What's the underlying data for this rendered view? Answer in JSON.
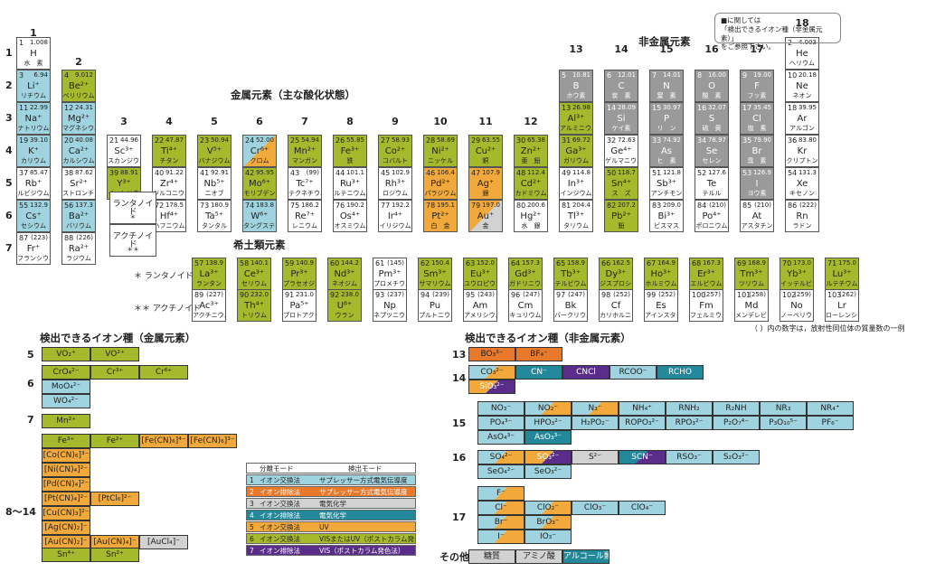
{
  "colors": {
    "green": "#a5b92c",
    "blue": "#9fd3e0",
    "orange": "#f1a93c",
    "gray": "#9a9a9a",
    "dkorange": "#e8792a",
    "teal": "#23899a",
    "purple": "#5a2d8a",
    "lightgray": "#d2d2d2"
  },
  "titles": {
    "metal": "金属元素（主な酸化状態）",
    "nonmetal": "非金属元素",
    "rare": "希土類元素",
    "ion_metal": "検出できるイオン種（金属元素）",
    "ion_nonmetal": "検出できるイオン種（非金属元素）",
    "note_line1": "■に関しては",
    "note_line2": "「検出できるイオン種（非金属元素）」",
    "note_line3": "をご参照下さい。",
    "footnote": "（ ）内の数字は，放射性同位体の質量数の一例",
    "lanth_row": "＊ ランタノイド",
    "actin_row": "＊＊ アクチノイド",
    "lanth_cell": "ランタノイド",
    "lanth_mark": "＊",
    "actin_cell": "アクチノイド",
    "actin_mark": "＊＊"
  },
  "group_numbers": [
    "1",
    "2",
    "3",
    "4",
    "5",
    "6",
    "7",
    "8",
    "9",
    "10",
    "11",
    "12",
    "13",
    "14",
    "15",
    "16",
    "17",
    "18"
  ],
  "period_numbers": [
    "1",
    "2",
    "3",
    "4",
    "5",
    "6",
    "7"
  ],
  "ion_groups": {
    "m5": "5",
    "m6": "6",
    "m7": "7",
    "m8": "8〜14",
    "n13": "13",
    "n14": "14",
    "n15": "15",
    "n16": "16",
    "n17": "17",
    "other": "その他"
  },
  "elements": [
    {
      "n": "1",
      "w": "1.008",
      "s": "H",
      "j": "水　素",
      "g": 1,
      "p": 1,
      "c": "white"
    },
    {
      "n": "2",
      "w": "4.003",
      "s": "He",
      "j": "ヘリウム",
      "g": 18,
      "p": 1,
      "c": "white"
    },
    {
      "n": "3",
      "w": "6.94",
      "s": "Li⁺",
      "j": "リチウム",
      "g": 1,
      "p": 2,
      "c": "blue"
    },
    {
      "n": "4",
      "w": "9.012",
      "s": "Be²⁺",
      "j": "ベリリウム",
      "g": 2,
      "p": 2,
      "c": "green"
    },
    {
      "n": "5",
      "w": "10.81",
      "s": "B",
      "j": "ホウ素",
      "g": 13,
      "p": 2,
      "c": "gray"
    },
    {
      "n": "6",
      "w": "12.01",
      "s": "C",
      "j": "炭　素",
      "g": 14,
      "p": 2,
      "c": "gray"
    },
    {
      "n": "7",
      "w": "14.01",
      "s": "N",
      "j": "窒　素",
      "g": 15,
      "p": 2,
      "c": "gray"
    },
    {
      "n": "8",
      "w": "16.00",
      "s": "O",
      "j": "酸　素",
      "g": 16,
      "p": 2,
      "c": "gray"
    },
    {
      "n": "9",
      "w": "19.00",
      "s": "F",
      "j": "フッ素",
      "g": 17,
      "p": 2,
      "c": "gray"
    },
    {
      "n": "10",
      "w": "20.18",
      "s": "Ne",
      "j": "ネオン",
      "g": 18,
      "p": 2,
      "c": "white"
    },
    {
      "n": "11",
      "w": "22.99",
      "s": "Na⁺",
      "j": "ナトリウム",
      "g": 1,
      "p": 3,
      "c": "blue"
    },
    {
      "n": "12",
      "w": "24.31",
      "s": "Mg²⁺",
      "j": "マグネシウム",
      "g": 2,
      "p": 3,
      "c": "blue"
    },
    {
      "n": "13",
      "w": "26.98",
      "s": "Al³⁺",
      "j": "アルミニウム",
      "g": 13,
      "p": 3,
      "c": "green"
    },
    {
      "n": "14",
      "w": "28.09",
      "s": "Si",
      "j": "ケイ素",
      "g": 14,
      "p": 3,
      "c": "gray"
    },
    {
      "n": "15",
      "w": "30.97",
      "s": "P",
      "j": "リ　ン",
      "g": 15,
      "p": 3,
      "c": "gray"
    },
    {
      "n": "16",
      "w": "32.07",
      "s": "S",
      "j": "硫　黄",
      "g": 16,
      "p": 3,
      "c": "gray"
    },
    {
      "n": "17",
      "w": "35.45",
      "s": "Cl",
      "j": "塩　素",
      "g": 17,
      "p": 3,
      "c": "gray"
    },
    {
      "n": "18",
      "w": "39.95",
      "s": "Ar",
      "j": "アルゴン",
      "g": 18,
      "p": 3,
      "c": "white"
    },
    {
      "n": "19",
      "w": "39.10",
      "s": "K⁺",
      "j": "カリウム",
      "g": 1,
      "p": 4,
      "c": "blue"
    },
    {
      "n": "20",
      "w": "40.08",
      "s": "Ca²⁺",
      "j": "カルシウム",
      "g": 2,
      "p": 4,
      "c": "blue"
    },
    {
      "n": "21",
      "w": "44.96",
      "s": "Sc³⁺",
      "j": "スカンジウム",
      "g": 3,
      "p": 4,
      "c": "white"
    },
    {
      "n": "22",
      "w": "47.87",
      "s": "Ti⁴⁺",
      "j": "チタン",
      "g": 4,
      "p": 4,
      "c": "green"
    },
    {
      "n": "23",
      "w": "50.94",
      "s": "V⁵⁺",
      "j": "バナジウム",
      "g": 5,
      "p": 4,
      "c": "green"
    },
    {
      "n": "24",
      "w": "52.00",
      "s": "Cr⁶⁺",
      "j": "クロム",
      "g": 6,
      "p": 4,
      "c": "split"
    },
    {
      "n": "25",
      "w": "54.94",
      "s": "Mn²⁺",
      "j": "マンガン",
      "g": 7,
      "p": 4,
      "c": "green"
    },
    {
      "n": "26",
      "w": "55.85",
      "s": "Fe³⁺",
      "j": "鉄",
      "g": 8,
      "p": 4,
      "c": "green"
    },
    {
      "n": "27",
      "w": "58.93",
      "s": "Co²⁺",
      "j": "コバルト",
      "g": 9,
      "p": 4,
      "c": "green"
    },
    {
      "n": "28",
      "w": "58.69",
      "s": "Ni²⁺",
      "j": "ニッケル",
      "g": 10,
      "p": 4,
      "c": "green"
    },
    {
      "n": "29",
      "w": "63.55",
      "s": "Cu²⁺",
      "j": "銅",
      "g": 11,
      "p": 4,
      "c": "green"
    },
    {
      "n": "30",
      "w": "65.38",
      "s": "Zn²⁺",
      "j": "亜　鉛",
      "g": 12,
      "p": 4,
      "c": "green"
    },
    {
      "n": "31",
      "w": "69.72",
      "s": "Ga³⁺",
      "j": "ガリウム",
      "g": 13,
      "p": 4,
      "c": "green"
    },
    {
      "n": "32",
      "w": "72.63",
      "s": "Ge⁴⁺",
      "j": "ゲルマニウム",
      "g": 14,
      "p": 4,
      "c": "white"
    },
    {
      "n": "33",
      "w": "74.92",
      "s": "As",
      "j": "ヒ　素",
      "g": 15,
      "p": 4,
      "c": "gray"
    },
    {
      "n": "34",
      "w": "78.97",
      "s": "Se",
      "j": "セレン",
      "g": 16,
      "p": 4,
      "c": "gray"
    },
    {
      "n": "35",
      "w": "79.90",
      "s": "Br",
      "j": "臭　素",
      "g": 17,
      "p": 4,
      "c": "gray"
    },
    {
      "n": "36",
      "w": "83.80",
      "s": "Kr",
      "j": "クリプトン",
      "g": 18,
      "p": 4,
      "c": "white"
    },
    {
      "n": "37",
      "w": "85.47",
      "s": "Rb⁺",
      "j": "ルビジウム",
      "g": 1,
      "p": 5,
      "c": "white"
    },
    {
      "n": "38",
      "w": "87.62",
      "s": "Sr²⁺",
      "j": "ストロンチウム",
      "g": 2,
      "p": 5,
      "c": "white"
    },
    {
      "n": "39",
      "w": "88.91",
      "s": "Y³⁺",
      "j": "イットリウム",
      "g": 3,
      "p": 5,
      "c": "green"
    },
    {
      "n": "40",
      "w": "91.22",
      "s": "Zr⁴⁺",
      "j": "ジルコニウム",
      "g": 4,
      "p": 5,
      "c": "white"
    },
    {
      "n": "41",
      "w": "92.91",
      "s": "Nb⁵⁺",
      "j": "ニオブ",
      "g": 5,
      "p": 5,
      "c": "white"
    },
    {
      "n": "42",
      "w": "95.95",
      "s": "Mo⁶⁺",
      "j": "モリブデン",
      "g": 6,
      "p": 5,
      "c": "green"
    },
    {
      "n": "43",
      "w": "(99)",
      "s": "Tc⁷⁺",
      "j": "テクネチウム",
      "g": 7,
      "p": 5,
      "c": "white"
    },
    {
      "n": "44",
      "w": "101.1",
      "s": "Ru³⁺",
      "j": "ルテニウム",
      "g": 8,
      "p": 5,
      "c": "white"
    },
    {
      "n": "45",
      "w": "102.9",
      "s": "Rh³⁺",
      "j": "ロジウム",
      "g": 9,
      "p": 5,
      "c": "white"
    },
    {
      "n": "46",
      "w": "106.4",
      "s": "Pd²⁺",
      "j": "パラジウム",
      "g": 10,
      "p": 5,
      "c": "orange"
    },
    {
      "n": "47",
      "w": "107.9",
      "s": "Ag⁺",
      "j": "銀",
      "g": 11,
      "p": 5,
      "c": "orange"
    },
    {
      "n": "48",
      "w": "112.4",
      "s": "Cd²⁺",
      "j": "カドミウム",
      "g": 12,
      "p": 5,
      "c": "green"
    },
    {
      "n": "49",
      "w": "114.8",
      "s": "In³⁺",
      "j": "インジウム",
      "g": 13,
      "p": 5,
      "c": "white"
    },
    {
      "n": "50",
      "w": "118.7",
      "s": "Sn⁴⁺",
      "j": "ス　ズ",
      "g": 14,
      "p": 5,
      "c": "green"
    },
    {
      "n": "51",
      "w": "121.8",
      "s": "Sb³⁺",
      "j": "アンチモン",
      "g": 15,
      "p": 5,
      "c": "white"
    },
    {
      "n": "52",
      "w": "127.6",
      "s": "Te",
      "j": "テルル",
      "g": 16,
      "p": 5,
      "c": "white"
    },
    {
      "n": "53",
      "w": "126.9",
      "s": "I",
      "j": "ヨウ素",
      "g": 17,
      "p": 5,
      "c": "gray"
    },
    {
      "n": "54",
      "w": "131.3",
      "s": "Xe",
      "j": "キセノン",
      "g": 18,
      "p": 5,
      "c": "white"
    },
    {
      "n": "55",
      "w": "132.9",
      "s": "Cs⁺",
      "j": "セシウム",
      "g": 1,
      "p": 6,
      "c": "blue"
    },
    {
      "n": "56",
      "w": "137.3",
      "s": "Ba²⁺",
      "j": "バリウム",
      "g": 2,
      "p": 6,
      "c": "blue"
    },
    {
      "n": "72",
      "w": "178.5",
      "s": "Hf⁴⁺",
      "j": "ハフニウム",
      "g": 4,
      "p": 6,
      "c": "white"
    },
    {
      "n": "73",
      "w": "180.9",
      "s": "Ta⁵⁺",
      "j": "タンタル",
      "g": 5,
      "p": 6,
      "c": "white"
    },
    {
      "n": "74",
      "w": "183.8",
      "s": "W⁶⁺",
      "j": "タングステン",
      "g": 6,
      "p": 6,
      "c": "blue"
    },
    {
      "n": "75",
      "w": "186.2",
      "s": "Re⁷⁺",
      "j": "レニウム",
      "g": 7,
      "p": 6,
      "c": "white"
    },
    {
      "n": "76",
      "w": "190.2",
      "s": "Os⁴⁺",
      "j": "オスミウム",
      "g": 8,
      "p": 6,
      "c": "white"
    },
    {
      "n": "77",
      "w": "192.2",
      "s": "Ir⁴⁺",
      "j": "イリジウム",
      "g": 9,
      "p": 6,
      "c": "white"
    },
    {
      "n": "78",
      "w": "195.1",
      "s": "Pt²⁺",
      "j": "白　金",
      "g": 10,
      "p": 6,
      "c": "orange"
    },
    {
      "n": "79",
      "w": "197.0",
      "s": "Au⁺",
      "j": "金",
      "g": 11,
      "p": 6,
      "c": "split2"
    },
    {
      "n": "80",
      "w": "200.6",
      "s": "Hg²⁺",
      "j": "水　銀",
      "g": 12,
      "p": 6,
      "c": "white"
    },
    {
      "n": "81",
      "w": "204.4",
      "s": "Tl³⁺",
      "j": "タリウム",
      "g": 13,
      "p": 6,
      "c": "white"
    },
    {
      "n": "82",
      "w": "207.2",
      "s": "Pb²⁺",
      "j": "鉛",
      "g": 14,
      "p": 6,
      "c": "green"
    },
    {
      "n": "83",
      "w": "209.0",
      "s": "Bi³⁺",
      "j": "ビスマス",
      "g": 15,
      "p": 6,
      "c": "white"
    },
    {
      "n": "84",
      "w": "(210)",
      "s": "Po⁴⁺",
      "j": "ポロニウム",
      "g": 16,
      "p": 6,
      "c": "white"
    },
    {
      "n": "85",
      "w": "(210)",
      "s": "At",
      "j": "アスタチン",
      "g": 17,
      "p": 6,
      "c": "white"
    },
    {
      "n": "86",
      "w": "(222)",
      "s": "Rn",
      "j": "ラドン",
      "g": 18,
      "p": 6,
      "c": "white"
    },
    {
      "n": "87",
      "w": "(223)",
      "s": "Fr⁺",
      "j": "フランシウム",
      "g": 1,
      "p": 7,
      "c": "white"
    },
    {
      "n": "88",
      "w": "(226)",
      "s": "Ra²⁺",
      "j": "ラジウム",
      "g": 2,
      "p": 7,
      "c": "white"
    }
  ],
  "lanthanides": [
    {
      "n": "57",
      "w": "138.9",
      "s": "La³⁺",
      "j": "ランタン",
      "c": "green"
    },
    {
      "n": "58",
      "w": "140.1",
      "s": "Ce³⁺",
      "j": "セリウム",
      "c": "green"
    },
    {
      "n": "59",
      "w": "140.9",
      "s": "Pr³⁺",
      "j": "プラセオジム",
      "c": "green"
    },
    {
      "n": "60",
      "w": "144.2",
      "s": "Nd³⁺",
      "j": "ネオジム",
      "c": "green"
    },
    {
      "n": "61",
      "w": "(145)",
      "s": "Pm³⁺",
      "j": "プロメチウム",
      "c": "white"
    },
    {
      "n": "62",
      "w": "150.4",
      "s": "Sm³⁺",
      "j": "サマリウム",
      "c": "green"
    },
    {
      "n": "63",
      "w": "152.0",
      "s": "Eu³⁺",
      "j": "ユウロピウム",
      "c": "green"
    },
    {
      "n": "64",
      "w": "157.3",
      "s": "Gd³⁺",
      "j": "ガドリニウム",
      "c": "green"
    },
    {
      "n": "65",
      "w": "158.9",
      "s": "Tb³⁺",
      "j": "テルビウム",
      "c": "green"
    },
    {
      "n": "66",
      "w": "162.5",
      "s": "Dy³⁺",
      "j": "ジスプロシウム",
      "c": "green"
    },
    {
      "n": "67",
      "w": "164.9",
      "s": "Ho³⁺",
      "j": "ホルミウム",
      "c": "green"
    },
    {
      "n": "68",
      "w": "167.3",
      "s": "Er³⁺",
      "j": "エルビウム",
      "c": "green"
    },
    {
      "n": "69",
      "w": "168.9",
      "s": "Tm³⁺",
      "j": "ツリウム",
      "c": "green"
    },
    {
      "n": "70",
      "w": "173.0",
      "s": "Yb³⁺",
      "j": "イッテルビウム",
      "c": "green"
    },
    {
      "n": "71",
      "w": "175.0",
      "s": "Lu³⁺",
      "j": "ルテチウム",
      "c": "green"
    }
  ],
  "actinides": [
    {
      "n": "89",
      "w": "(227)",
      "s": "Ac³⁺",
      "j": "アクチニウム",
      "c": "white"
    },
    {
      "n": "90",
      "w": "232.0",
      "s": "Th⁴⁺",
      "j": "トリウム",
      "c": "green"
    },
    {
      "n": "91",
      "w": "231.0",
      "s": "Pa⁵⁺",
      "j": "プロトアクチニウム",
      "c": "white"
    },
    {
      "n": "92",
      "w": "238.0",
      "s": "U⁶⁺",
      "j": "ウラン",
      "c": "green"
    },
    {
      "n": "93",
      "w": "(237)",
      "s": "Np",
      "j": "ネプツニウム",
      "c": "white"
    },
    {
      "n": "94",
      "w": "(239)",
      "s": "Pu",
      "j": "プルトニウム",
      "c": "white"
    },
    {
      "n": "95",
      "w": "(243)",
      "s": "Am",
      "j": "アメリシウム",
      "c": "white"
    },
    {
      "n": "96",
      "w": "(247)",
      "s": "Cm",
      "j": "キュリウム",
      "c": "white"
    },
    {
      "n": "97",
      "w": "(247)",
      "s": "Bk",
      "j": "バークリウム",
      "c": "white"
    },
    {
      "n": "98",
      "w": "(252)",
      "s": "Cf",
      "j": "カリホルニウム",
      "c": "white"
    },
    {
      "n": "99",
      "w": "(252)",
      "s": "Es",
      "j": "アインスタイニウム",
      "c": "white"
    },
    {
      "n": "100",
      "w": "(257)",
      "s": "Fm",
      "j": "フェルミウム",
      "c": "white"
    },
    {
      "n": "101",
      "w": "(258)",
      "s": "Md",
      "j": "メンデレビウム",
      "c": "white"
    },
    {
      "n": "102",
      "w": "(259)",
      "s": "No",
      "j": "ノーベリウム",
      "c": "white"
    },
    {
      "n": "103",
      "w": "(262)",
      "s": "Lr",
      "j": "ローレンシウム",
      "c": "white"
    }
  ],
  "ions_metal": [
    {
      "t": "VO₂⁺",
      "c": "green"
    },
    {
      "t": "VO²⁺",
      "c": "green"
    },
    {
      "t": "CrO₄²⁻",
      "c": "green"
    },
    {
      "t": "Cr³⁺",
      "c": "green"
    },
    {
      "t": "Cr⁶⁺",
      "c": "green"
    },
    {
      "t": "MoO₄²⁻",
      "c": "blue"
    },
    {
      "t": "WO₄²⁻",
      "c": "blue"
    },
    {
      "t": "Mn²⁺",
      "c": "green"
    },
    {
      "t": "Fe³⁺",
      "c": "green"
    },
    {
      "t": "Fe²⁺",
      "c": "green"
    },
    {
      "t": "[Fe(CN)₆]⁴⁻",
      "c": "orange"
    },
    {
      "t": "[Fe(CN)₆]³⁻",
      "c": "orange"
    },
    {
      "t": "[Co(CN)₆]³⁻",
      "c": "orange"
    },
    {
      "t": "[Ni(CN)₄]²⁻",
      "c": "orange"
    },
    {
      "t": "[Pd(CN)₄]²⁻",
      "c": "orange"
    },
    {
      "t": "[Pt(CN)₄]²⁻",
      "c": "orange"
    },
    {
      "t": "[PtCl₆]²⁻",
      "c": "orange"
    },
    {
      "t": "[Cu(CN)₃]²⁻",
      "c": "orange"
    },
    {
      "t": "[Ag(CN)₂]⁻",
      "c": "orange"
    },
    {
      "t": "[Au(CN)₂]⁻",
      "c": "orange"
    },
    {
      "t": "[Au(CN)₄]⁻",
      "c": "orange"
    },
    {
      "t": "[AuCl₄]⁻",
      "c": "lightgray"
    },
    {
      "t": "Sn⁴⁺",
      "c": "green"
    },
    {
      "t": "Sn²⁺",
      "c": "green"
    }
  ],
  "ions_nonmetal": [
    {
      "t": "BO₃³⁻",
      "c": "dkorange"
    },
    {
      "t": "BF₄⁻",
      "c": "dkorange"
    },
    {
      "t": "CO₃²⁻",
      "c": "split"
    },
    {
      "t": "CN⁻",
      "c": "teal"
    },
    {
      "t": "CNCl",
      "c": "purple"
    },
    {
      "t": "RCOO⁻",
      "c": "blue"
    },
    {
      "t": "RCHO",
      "c": "teal"
    },
    {
      "t": "SiO₃²⁻",
      "c": "splitp"
    },
    {
      "t": "NO₃⁻",
      "c": "blue"
    },
    {
      "t": "NO₂⁻",
      "c": "split"
    },
    {
      "t": "N₃⁻",
      "c": "split"
    },
    {
      "t": "NH₄⁺",
      "c": "blue"
    },
    {
      "t": "RNH₂",
      "c": "blue"
    },
    {
      "t": "R₂NH",
      "c": "blue"
    },
    {
      "t": "NR₃",
      "c": "blue"
    },
    {
      "t": "NR₄⁺",
      "c": "blue"
    },
    {
      "t": "PO₄³⁻",
      "c": "blue"
    },
    {
      "t": "HPO₃²⁻",
      "c": "blue"
    },
    {
      "t": "H₂PO₂⁻",
      "c": "blue"
    },
    {
      "t": "ROPO₃²⁻",
      "c": "blue"
    },
    {
      "t": "RPO₃²⁻",
      "c": "blue"
    },
    {
      "t": "P₂O₇⁴⁻",
      "c": "blue"
    },
    {
      "t": "P₃O₁₀⁵⁻",
      "c": "blue"
    },
    {
      "t": "PF₆⁻",
      "c": "blue"
    },
    {
      "t": "AsO₄³⁻",
      "c": "blue"
    },
    {
      "t": "AsO₃³⁻",
      "c": "teal"
    },
    {
      "t": "SO₄²⁻",
      "c": "split"
    },
    {
      "t": "SO₃²⁻",
      "c": "splitp"
    },
    {
      "t": "S²⁻",
      "c": "lightgray"
    },
    {
      "t": "SCN⁻",
      "c": "splitp2"
    },
    {
      "t": "RSO₃⁻",
      "c": "blue"
    },
    {
      "t": "S₂O₃²⁻",
      "c": "blue"
    },
    {
      "t": "SeO₄²⁻",
      "c": "blue"
    },
    {
      "t": "SeO₃²⁻",
      "c": "blue"
    },
    {
      "t": "F⁻",
      "c": "split"
    },
    {
      "t": "Cl⁻",
      "c": "split"
    },
    {
      "t": "ClO₂⁻",
      "c": "split"
    },
    {
      "t": "ClO₃⁻",
      "c": "blue"
    },
    {
      "t": "ClO₄⁻",
      "c": "blue"
    },
    {
      "t": "Br⁻",
      "c": "split"
    },
    {
      "t": "BrO₃⁻",
      "c": "split"
    },
    {
      "t": "I⁻",
      "c": "split"
    },
    {
      "t": "IO₃⁻",
      "c": "blue"
    },
    {
      "t": "糖質",
      "c": "lightgray"
    },
    {
      "t": "アミノ酸",
      "c": "lightgray"
    },
    {
      "t": "アルコール類",
      "c": "teal"
    }
  ],
  "legend": {
    "head1": "分離モード",
    "head2": "検出モード",
    "rows": [
      {
        "n": "1",
        "mode": "イオン交換法",
        "det": "サプレッサー方式電気伝導度",
        "c": "blue"
      },
      {
        "n": "2",
        "mode": "イオン排除法",
        "det": "サプレッサー方式電気伝導度",
        "c": "dkorange"
      },
      {
        "n": "3",
        "mode": "イオン交換法",
        "det": "電気化学",
        "c": "lightgray"
      },
      {
        "n": "4",
        "mode": "イオン排除法",
        "det": "電気化学",
        "c": "teal"
      },
      {
        "n": "5",
        "mode": "イオン交換法",
        "det": "UV",
        "c": "orange"
      },
      {
        "n": "6",
        "mode": "イオン交換法",
        "det": "VISまたはUV（ポストカラム発色法）",
        "c": "green"
      },
      {
        "n": "7",
        "mode": "イオン排除法",
        "det": "VIS（ポストカラム発色法）",
        "c": "purple"
      }
    ]
  }
}
